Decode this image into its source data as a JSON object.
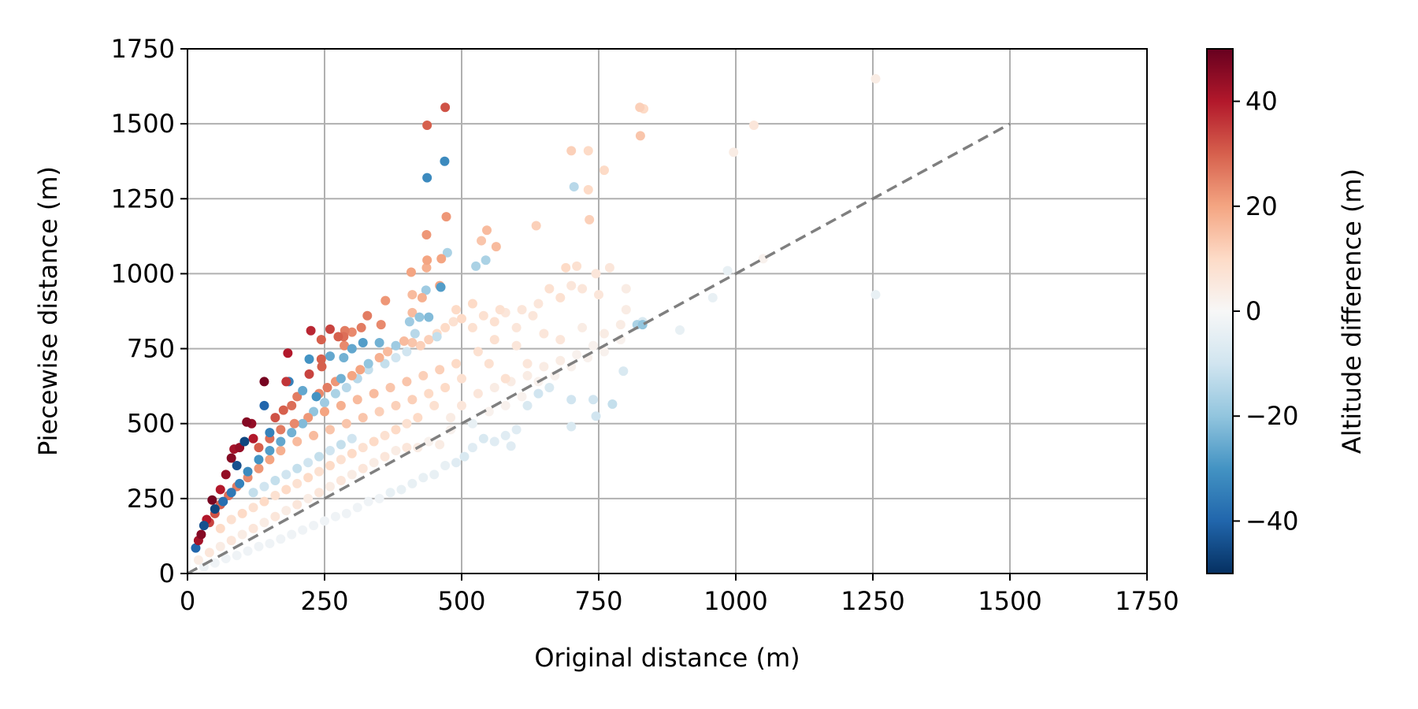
{
  "chart_data": {
    "type": "scatter",
    "xlabel": "Original distance (m)",
    "ylabel": "Piecewise distance (m)",
    "xlim": [
      0,
      1750
    ],
    "ylim": [
      0,
      1750
    ],
    "xticks": [
      "0",
      "250",
      "500",
      "750",
      "1000",
      "1250",
      "1500",
      "1750"
    ],
    "yticks": [
      "0",
      "250",
      "500",
      "750",
      "1000",
      "1250",
      "1500",
      "1750"
    ],
    "xtick_values": [
      0,
      250,
      500,
      750,
      1000,
      1250,
      1500,
      1750
    ],
    "ytick_values": [
      0,
      250,
      500,
      750,
      1000,
      1250,
      1500,
      1750
    ],
    "grid": true,
    "reference_line": {
      "x": [
        0,
        1500
      ],
      "y": [
        0,
        1500
      ],
      "style": "dashed",
      "color": "#7f7f7f"
    },
    "colorbar": {
      "label": "Altitude difference (m)",
      "range": [
        -50,
        50
      ],
      "ticks": [
        "40",
        "20",
        "0",
        "−20",
        "−40"
      ],
      "tick_values": [
        40,
        20,
        0,
        -20,
        -40
      ],
      "colormap": "RdBu_r",
      "stops": [
        "#053061",
        "#2166ac",
        "#4393c3",
        "#92c5de",
        "#d1e5f0",
        "#f7f7f7",
        "#fddbc7",
        "#f4a582",
        "#d6604d",
        "#b2182b",
        "#67001f"
      ]
    },
    "points": [
      [
        1255,
        1650,
        4
      ],
      [
        470,
        1555,
        32
      ],
      [
        437,
        1495,
        30
      ],
      [
        469,
        1375,
        -32
      ],
      [
        437,
        1320,
        -32
      ],
      [
        825,
        1555,
        12
      ],
      [
        832,
        1550,
        10
      ],
      [
        826,
        1460,
        14
      ],
      [
        1033,
        1495,
        6
      ],
      [
        996,
        1405,
        4
      ],
      [
        700,
        1410,
        12
      ],
      [
        731,
        1410,
        10
      ],
      [
        705,
        1290,
        -14
      ],
      [
        760,
        1345,
        10
      ],
      [
        731,
        1280,
        10
      ],
      [
        733,
        1180,
        12
      ],
      [
        472,
        1190,
        22
      ],
      [
        436,
        1130,
        22
      ],
      [
        636,
        1160,
        12
      ],
      [
        474,
        1070,
        -16
      ],
      [
        546,
        1145,
        16
      ],
      [
        563,
        1090,
        16
      ],
      [
        536,
        1110,
        14
      ],
      [
        544,
        1045,
        -16
      ],
      [
        526,
        1025,
        -16
      ],
      [
        463,
        1050,
        20
      ],
      [
        437,
        1045,
        20
      ],
      [
        408,
        1005,
        20
      ],
      [
        436,
        1020,
        18
      ],
      [
        462,
        955,
        -28
      ],
      [
        435,
        945,
        -18
      ],
      [
        460,
        960,
        20
      ],
      [
        428,
        920,
        18
      ],
      [
        410,
        930,
        16
      ],
      [
        423,
        855,
        -20
      ],
      [
        440,
        855,
        -22
      ],
      [
        405,
        840,
        -18
      ],
      [
        410,
        870,
        16
      ],
      [
        361,
        910,
        22
      ],
      [
        328,
        860,
        26
      ],
      [
        353,
        830,
        24
      ],
      [
        317,
        820,
        26
      ],
      [
        300,
        805,
        24
      ],
      [
        287,
        810,
        26
      ],
      [
        285,
        790,
        28
      ],
      [
        275,
        790,
        30
      ],
      [
        260,
        815,
        34
      ],
      [
        225,
        810,
        38
      ],
      [
        244,
        780,
        30
      ],
      [
        320,
        770,
        -28
      ],
      [
        350,
        770,
        -24
      ],
      [
        300,
        750,
        -26
      ],
      [
        286,
        760,
        24
      ],
      [
        260,
        725,
        -26
      ],
      [
        285,
        720,
        -24
      ],
      [
        222,
        715,
        -30
      ],
      [
        244,
        715,
        30
      ],
      [
        245,
        690,
        30
      ],
      [
        222,
        665,
        34
      ],
      [
        183,
        735,
        40
      ],
      [
        180,
        640,
        36
      ],
      [
        185,
        640,
        -34
      ],
      [
        140,
        640,
        48
      ],
      [
        140,
        560,
        -40
      ],
      [
        108,
        505,
        46
      ],
      [
        117,
        500,
        44
      ],
      [
        104,
        440,
        -46
      ],
      [
        95,
        420,
        44
      ],
      [
        85,
        415,
        42
      ],
      [
        80,
        385,
        46
      ],
      [
        90,
        360,
        -44
      ],
      [
        70,
        330,
        44
      ],
      [
        60,
        280,
        40
      ],
      [
        45,
        245,
        48
      ],
      [
        50,
        215,
        -46
      ],
      [
        35,
        180,
        40
      ],
      [
        30,
        160,
        -44
      ],
      [
        25,
        130,
        46
      ],
      [
        20,
        110,
        42
      ],
      [
        15,
        85,
        -40
      ],
      [
        120,
        450,
        40
      ],
      [
        150,
        470,
        -34
      ],
      [
        160,
        520,
        32
      ],
      [
        175,
        545,
        30
      ],
      [
        190,
        560,
        28
      ],
      [
        200,
        590,
        26
      ],
      [
        210,
        610,
        -26
      ],
      [
        235,
        590,
        -30
      ],
      [
        240,
        600,
        24
      ],
      [
        255,
        620,
        26
      ],
      [
        270,
        640,
        22
      ],
      [
        280,
        650,
        -24
      ],
      [
        300,
        660,
        20
      ],
      [
        315,
        680,
        20
      ],
      [
        330,
        700,
        -20
      ],
      [
        350,
        720,
        18
      ],
      [
        365,
        740,
        16
      ],
      [
        380,
        760,
        -18
      ],
      [
        395,
        775,
        16
      ],
      [
        410,
        770,
        14
      ],
      [
        425,
        760,
        12
      ],
      [
        440,
        780,
        12
      ],
      [
        455,
        800,
        10
      ],
      [
        470,
        820,
        10
      ],
      [
        485,
        840,
        8
      ],
      [
        500,
        850,
        10
      ],
      [
        520,
        820,
        8
      ],
      [
        540,
        860,
        8
      ],
      [
        560,
        840,
        8
      ],
      [
        580,
        870,
        6
      ],
      [
        610,
        880,
        6
      ],
      [
        640,
        900,
        6
      ],
      [
        660,
        950,
        8
      ],
      [
        680,
        920,
        8
      ],
      [
        700,
        960,
        6
      ],
      [
        720,
        950,
        6
      ],
      [
        745,
        1000,
        6
      ],
      [
        770,
        1020,
        6
      ],
      [
        800,
        950,
        4
      ],
      [
        690,
        1020,
        10
      ],
      [
        710,
        1025,
        8
      ],
      [
        750,
        930,
        6
      ],
      [
        820,
        830,
        -16
      ],
      [
        830,
        840,
        -8
      ],
      [
        800,
        880,
        4
      ],
      [
        898,
        812,
        -4
      ],
      [
        958,
        920,
        -4
      ],
      [
        985,
        1010,
        -4
      ],
      [
        1050,
        1050,
        2
      ],
      [
        1255,
        930,
        -4
      ],
      [
        640,
        600,
        -10
      ],
      [
        660,
        620,
        -8
      ],
      [
        700,
        580,
        -10
      ],
      [
        740,
        580,
        -10
      ],
      [
        745,
        525,
        -10
      ],
      [
        775,
        565,
        -12
      ],
      [
        795,
        675,
        -8
      ],
      [
        700,
        490,
        -8
      ],
      [
        620,
        560,
        -8
      ],
      [
        600,
        480,
        -6
      ],
      [
        590,
        425,
        -6
      ],
      [
        580,
        460,
        -6
      ],
      [
        560,
        440,
        -6
      ],
      [
        540,
        450,
        -8
      ],
      [
        520,
        420,
        -6
      ],
      [
        505,
        390,
        -8
      ],
      [
        490,
        370,
        -6
      ],
      [
        470,
        360,
        -4
      ],
      [
        450,
        330,
        -4
      ],
      [
        430,
        320,
        -4
      ],
      [
        410,
        300,
        -4
      ],
      [
        390,
        280,
        -4
      ],
      [
        370,
        270,
        -4
      ],
      [
        350,
        250,
        -2
      ],
      [
        330,
        240,
        -2
      ],
      [
        310,
        220,
        -2
      ],
      [
        290,
        200,
        -2
      ],
      [
        270,
        190,
        -2
      ],
      [
        250,
        175,
        -2
      ],
      [
        230,
        160,
        -2
      ],
      [
        210,
        145,
        -2
      ],
      [
        190,
        130,
        -2
      ],
      [
        170,
        115,
        -2
      ],
      [
        150,
        100,
        -2
      ],
      [
        130,
        90,
        -2
      ],
      [
        110,
        75,
        -2
      ],
      [
        90,
        60,
        -2
      ],
      [
        70,
        50,
        -2
      ],
      [
        50,
        35,
        -2
      ],
      [
        30,
        22,
        -2
      ],
      [
        520,
        500,
        -4
      ],
      [
        480,
        480,
        2
      ],
      [
        460,
        430,
        4
      ],
      [
        440,
        440,
        2
      ],
      [
        420,
        420,
        4
      ],
      [
        400,
        420,
        6
      ],
      [
        380,
        410,
        4
      ],
      [
        360,
        390,
        6
      ],
      [
        340,
        370,
        4
      ],
      [
        320,
        350,
        6
      ],
      [
        300,
        330,
        4
      ],
      [
        280,
        310,
        6
      ],
      [
        260,
        290,
        4
      ],
      [
        240,
        270,
        6
      ],
      [
        220,
        250,
        4
      ],
      [
        200,
        230,
        6
      ],
      [
        180,
        210,
        4
      ],
      [
        160,
        190,
        6
      ],
      [
        140,
        170,
        4
      ],
      [
        120,
        150,
        6
      ],
      [
        100,
        130,
        4
      ],
      [
        80,
        110,
        6
      ],
      [
        60,
        90,
        4
      ],
      [
        40,
        70,
        6
      ],
      [
        20,
        45,
        4
      ],
      [
        450,
        560,
        8
      ],
      [
        420,
        520,
        10
      ],
      [
        400,
        500,
        8
      ],
      [
        380,
        480,
        10
      ],
      [
        360,
        460,
        8
      ],
      [
        340,
        440,
        10
      ],
      [
        320,
        420,
        8
      ],
      [
        300,
        400,
        10
      ],
      [
        280,
        380,
        8
      ],
      [
        260,
        360,
        10
      ],
      [
        240,
        340,
        8
      ],
      [
        220,
        320,
        10
      ],
      [
        200,
        300,
        8
      ],
      [
        180,
        280,
        10
      ],
      [
        160,
        260,
        8
      ],
      [
        140,
        240,
        10
      ],
      [
        120,
        220,
        8
      ],
      [
        100,
        200,
        10
      ],
      [
        80,
        180,
        8
      ],
      [
        60,
        150,
        10
      ],
      [
        500,
        650,
        8
      ],
      [
        470,
        620,
        10
      ],
      [
        440,
        600,
        10
      ],
      [
        410,
        580,
        12
      ],
      [
        380,
        560,
        12
      ],
      [
        350,
        540,
        12
      ],
      [
        320,
        520,
        14
      ],
      [
        290,
        500,
        14
      ],
      [
        260,
        480,
        14
      ],
      [
        230,
        460,
        16
      ],
      [
        200,
        440,
        16
      ],
      [
        170,
        410,
        18
      ],
      [
        150,
        380,
        20
      ],
      [
        130,
        350,
        22
      ],
      [
        110,
        320,
        24
      ],
      [
        90,
        290,
        26
      ],
      [
        75,
        260,
        28
      ],
      [
        60,
        230,
        30
      ],
      [
        50,
        200,
        32
      ],
      [
        40,
        170,
        34
      ],
      [
        550,
        700,
        8
      ],
      [
        580,
        650,
        8
      ],
      [
        620,
        700,
        6
      ],
      [
        600,
        760,
        6
      ],
      [
        560,
        780,
        8
      ],
      [
        530,
        740,
        8
      ],
      [
        490,
        700,
        10
      ],
      [
        460,
        680,
        12
      ],
      [
        430,
        660,
        12
      ],
      [
        400,
        640,
        14
      ],
      [
        370,
        620,
        14
      ],
      [
        340,
        600,
        16
      ],
      [
        310,
        580,
        16
      ],
      [
        280,
        560,
        18
      ],
      [
        250,
        540,
        20
      ],
      [
        220,
        520,
        22
      ],
      [
        195,
        500,
        24
      ],
      [
        170,
        480,
        26
      ],
      [
        150,
        450,
        28
      ],
      [
        130,
        420,
        30
      ],
      [
        230,
        540,
        -20
      ],
      [
        210,
        500,
        -22
      ],
      [
        190,
        470,
        -24
      ],
      [
        170,
        440,
        -26
      ],
      [
        150,
        410,
        -28
      ],
      [
        130,
        380,
        -30
      ],
      [
        110,
        340,
        -32
      ],
      [
        95,
        300,
        -34
      ],
      [
        80,
        270,
        -36
      ],
      [
        65,
        240,
        -38
      ],
      [
        250,
        570,
        -18
      ],
      [
        270,
        600,
        -16
      ],
      [
        290,
        620,
        -14
      ],
      [
        310,
        650,
        -14
      ],
      [
        330,
        680,
        -12
      ],
      [
        360,
        700,
        -12
      ],
      [
        380,
        720,
        -10
      ],
      [
        400,
        740,
        -10
      ],
      [
        415,
        800,
        -14
      ],
      [
        455,
        790,
        -12
      ],
      [
        300,
        450,
        -10
      ],
      [
        280,
        430,
        -12
      ],
      [
        260,
        410,
        -10
      ],
      [
        240,
        390,
        -12
      ],
      [
        220,
        370,
        -10
      ],
      [
        200,
        350,
        -12
      ],
      [
        180,
        330,
        -10
      ],
      [
        160,
        310,
        -12
      ],
      [
        140,
        290,
        -10
      ],
      [
        120,
        270,
        -12
      ],
      [
        650,
        800,
        6
      ],
      [
        680,
        780,
        6
      ],
      [
        720,
        820,
        4
      ],
      [
        760,
        800,
        4
      ],
      [
        790,
        830,
        4
      ],
      [
        600,
        820,
        6
      ],
      [
        630,
        860,
        6
      ],
      [
        570,
        880,
        8
      ],
      [
        520,
        900,
        10
      ],
      [
        490,
        880,
        10
      ],
      [
        480,
        520,
        4
      ],
      [
        500,
        560,
        6
      ],
      [
        530,
        600,
        6
      ],
      [
        560,
        620,
        4
      ],
      [
        590,
        640,
        4
      ],
      [
        620,
        660,
        4
      ],
      [
        650,
        690,
        4
      ],
      [
        680,
        710,
        4
      ],
      [
        710,
        730,
        2
      ],
      [
        740,
        760,
        2
      ],
      [
        550,
        540,
        2
      ],
      [
        580,
        560,
        2
      ],
      [
        610,
        590,
        2
      ],
      [
        640,
        640,
        2
      ],
      [
        670,
        660,
        2
      ],
      [
        700,
        690,
        2
      ],
      [
        730,
        720,
        2
      ],
      [
        760,
        740,
        2
      ],
      [
        790,
        780,
        2
      ],
      [
        830,
        830,
        -20
      ]
    ]
  }
}
